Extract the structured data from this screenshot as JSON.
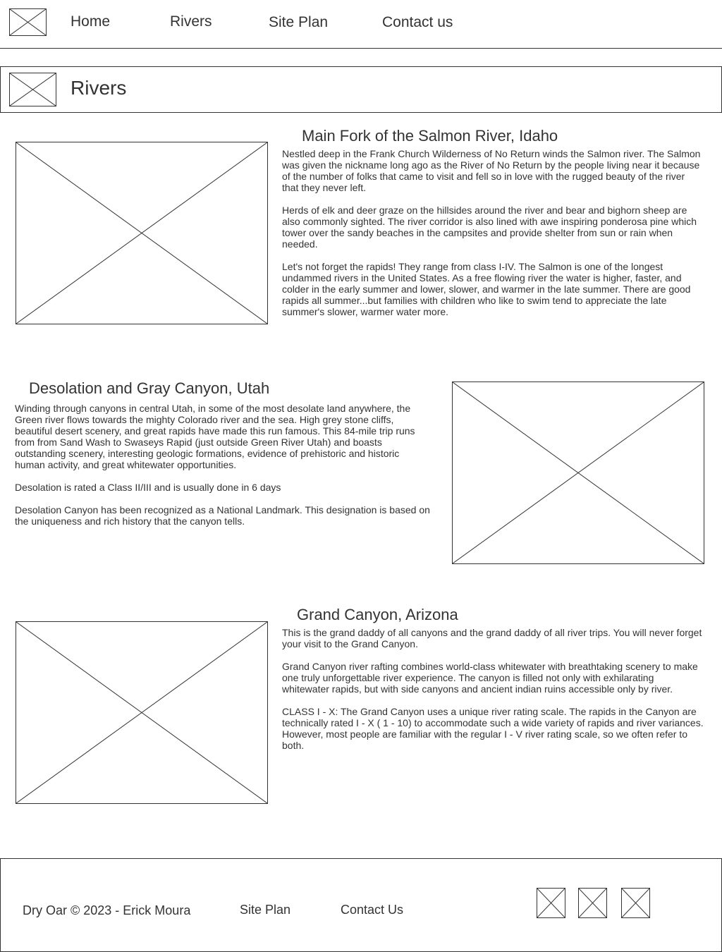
{
  "nav": {
    "links": [
      "Home",
      "Rivers",
      "Site Plan",
      "Contact us"
    ]
  },
  "banner": {
    "title": "Rivers"
  },
  "sections": [
    {
      "title": "Main Fork of the Salmon River, Idaho",
      "paragraphs": [
        "Nestled deep in the Frank Church Wilderness of No Return winds the Salmon river. The Salmon was given the nickname long ago as the River of No Return by the people living near it because of the number of folks that came to visit and fell so in love with the rugged beauty of the river that they never left.",
        "Herds of elk and deer graze on the hillsides around the river and bear and bighorn sheep are also commonly sighted. The river corridor is also lined with awe inspiring ponderosa pine which tower over the sandy beaches in the campsites and provide shelter from sun or rain when needed.",
        "Let's not forget the rapids! They range from class I-IV. The Salmon is one of the longest undammed rivers in the United States. As a free flowing river the water is higher, faster, and colder in the early summer and lower, slower, and warmer in the late summer. There are good rapids all summer...but families with children who like to swim tend to appreciate the late summer's slower, warmer water more."
      ]
    },
    {
      "title": "Desolation and Gray Canyon, Utah",
      "paragraphs": [
        "Winding through canyons in central Utah, in some of the most desolate land anywhere, the Green river flows towards the mighty Colorado river and the sea. High grey stone cliffs, beautiful desert scenery, and great rapids have made this run famous. This 84-mile trip runs from from Sand Wash to Swaseys Rapid (just outside Green River Utah) and boasts outstanding scenery, interesting geologic formations, evidence of prehistoric and historic human activity, and great whitewater opportunities.",
        "Desolation is rated a Class II/III and is usually done in 6 days",
        "Desolation Canyon has been recognized as a National Landmark. This designation is based on the uniqueness and rich history that the canyon tells."
      ]
    },
    {
      "title": "Grand Canyon, Arizona",
      "paragraphs": [
        "This is the grand daddy of all canyons and the grand daddy of all river trips. You will never forget your visit to the Grand Canyon.",
        "Grand Canyon river rafting combines world-class whitewater with breathtaking scenery to make one truly unforgettable river experience. The canyon is filled not only with exhilarating whitewater rapids, but with side canyons and ancient indian ruins accessible only by river.",
        "CLASS I - X: The Grand Canyon uses a unique river rating scale. The rapids in the Canyon are technically rated I - X ( 1 - 10) to accommodate such a wide variety of rapids and river variances. However, most people are familiar with the regular I - V river rating scale, so we often refer to both."
      ]
    }
  ],
  "footer": {
    "copyright": "Dry Oar © 2023 - Erick Moura",
    "links": [
      "Site Plan",
      "Contact Us"
    ]
  }
}
